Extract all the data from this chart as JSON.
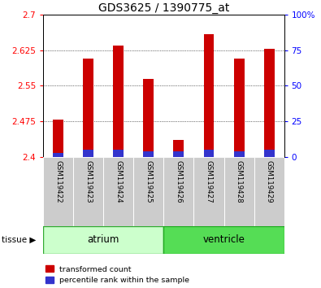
{
  "title": "GDS3625 / 1390775_at",
  "samples": [
    "GSM119422",
    "GSM119423",
    "GSM119424",
    "GSM119425",
    "GSM119426",
    "GSM119427",
    "GSM119428",
    "GSM119429"
  ],
  "red_values": [
    2.478,
    2.607,
    2.635,
    2.565,
    2.435,
    2.658,
    2.607,
    2.627
  ],
  "blue_values": [
    3,
    5,
    5,
    4,
    4,
    5,
    4,
    5
  ],
  "baseline": 2.4,
  "ylim_left": [
    2.4,
    2.7
  ],
  "ylim_right": [
    0,
    100
  ],
  "yticks_left": [
    2.4,
    2.475,
    2.55,
    2.625,
    2.7
  ],
  "yticks_right": [
    0,
    25,
    50,
    75,
    100
  ],
  "red_color": "#cc0000",
  "blue_color": "#3333cc",
  "bar_width": 0.35,
  "background_color": "#ffffff",
  "gray_bg": "#cccccc",
  "atrium_color": "#ccffcc",
  "ventricle_color": "#55dd55",
  "title_fontsize": 10,
  "tick_fontsize": 7.5,
  "label_fontsize": 7,
  "group_label_fontsize": 8.5
}
